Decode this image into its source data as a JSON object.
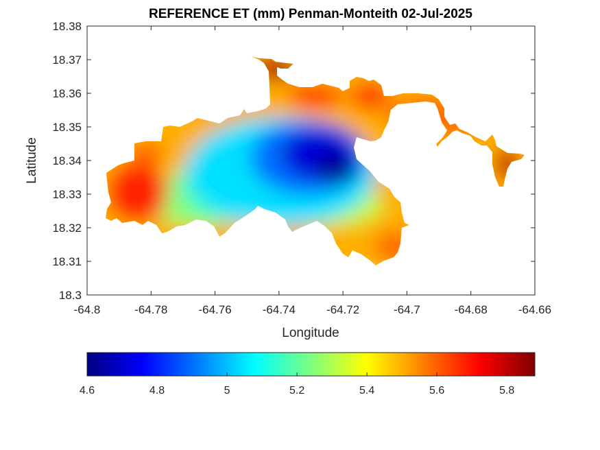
{
  "chart_data": {
    "type": "heatmap",
    "title": "REFERENCE ET (mm) Penman-Monteith 02-Jul-2025",
    "xlabel": "Longitude",
    "ylabel": "Latitude",
    "xlim": [
      -64.8,
      -64.66
    ],
    "ylim": [
      18.3,
      18.38
    ],
    "xticks": [
      "-64.8",
      "-64.78",
      "-64.76",
      "-64.74",
      "-64.72",
      "-64.7",
      "-64.68",
      "-64.66"
    ],
    "yticks": [
      "18.3",
      "18.31",
      "18.32",
      "18.33",
      "18.34",
      "18.35",
      "18.36",
      "18.37",
      "18.38"
    ],
    "colorbar": {
      "orientation": "horizontal",
      "placement": "bottom",
      "range": [
        4.6,
        5.88
      ],
      "colormap": "jet",
      "ticks": [
        "4.6",
        "4.8",
        "5",
        "5.2",
        "5.4",
        "5.6",
        "5.8"
      ]
    },
    "field": {
      "min_value": 4.6,
      "max_value": 5.88,
      "low_center": {
        "lon": -64.73,
        "lat": 18.341,
        "value": 4.6
      },
      "high_regions": [
        {
          "lon": -64.79,
          "lat": 18.327,
          "value": 5.75
        },
        {
          "lon": -64.745,
          "lat": 18.369,
          "value": 5.85
        },
        {
          "lon": -64.671,
          "lat": 18.337,
          "value": 5.85
        }
      ]
    }
  },
  "colors": {
    "jet_stops": [
      "#00007f",
      "#0000ff",
      "#007fff",
      "#00ffff",
      "#7fff7f",
      "#ffff00",
      "#ff7f00",
      "#ff0000",
      "#7f0000"
    ],
    "axis": "#262626",
    "background": "#ffffff"
  }
}
